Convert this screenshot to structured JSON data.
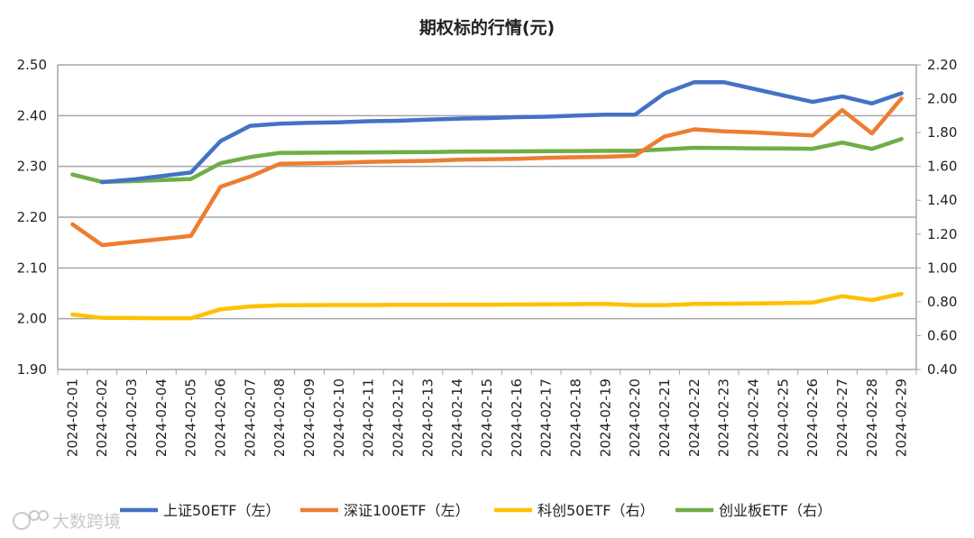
{
  "chart_data": {
    "type": "line",
    "title": "期权标的行情(元)",
    "categories": [
      "2024-02-01",
      "2024-02-02",
      "2024-02-03",
      "2024-02-04",
      "2024-02-05",
      "2024-02-06",
      "2024-02-07",
      "2024-02-08",
      "2024-02-09",
      "2024-02-10",
      "2024-02-11",
      "2024-02-12",
      "2024-02-13",
      "2024-02-14",
      "2024-02-15",
      "2024-02-16",
      "2024-02-17",
      "2024-02-18",
      "2024-02-19",
      "2024-02-20",
      "2024-02-21",
      "2024-02-22",
      "2024-02-23",
      "2024-02-24",
      "2024-02-25",
      "2024-02-26",
      "2024-02-27",
      "2024-02-28",
      "2024-02-29"
    ],
    "left_axis": {
      "ylim": [
        1.9,
        2.5
      ],
      "ticks": [
        "1.90",
        "2.00",
        "2.10",
        "2.20",
        "2.30",
        "2.40",
        "2.50"
      ]
    },
    "right_axis": {
      "ylim": [
        0.4,
        2.2
      ],
      "ticks": [
        "0.40",
        "0.60",
        "0.80",
        "1.00",
        "1.20",
        "1.40",
        "1.60",
        "1.80",
        "2.00",
        "2.20"
      ]
    },
    "grid": true,
    "legend_position": "bottom",
    "series": [
      {
        "name": "上证50ETF（左）",
        "axis": "left",
        "color": "#4472C4",
        "values": [
          null,
          2.269,
          2.274,
          2.281,
          2.288,
          2.35,
          2.38,
          2.384,
          2.386,
          2.387,
          2.389,
          2.39,
          2.392,
          2.394,
          2.395,
          2.397,
          2.398,
          2.4,
          2.402,
          2.402,
          2.444,
          2.466,
          2.466,
          2.453,
          2.44,
          2.427,
          2.438,
          2.424,
          2.444
        ]
      },
      {
        "name": "深证100ETF（左）",
        "axis": "left",
        "color": "#ED7D31",
        "values": [
          2.186,
          2.145,
          2.151,
          2.157,
          2.163,
          2.26,
          2.28,
          2.305,
          2.306,
          2.307,
          2.309,
          2.31,
          2.311,
          2.313,
          2.314,
          2.315,
          2.317,
          2.318,
          2.319,
          2.321,
          2.359,
          2.373,
          2.369,
          2.367,
          2.364,
          2.361,
          2.411,
          2.365,
          2.434
        ]
      },
      {
        "name": "科创50ETF（右）",
        "axis": "right",
        "color": "#FFC000",
        "values": [
          0.725,
          0.705,
          0.704,
          0.703,
          0.703,
          0.756,
          0.772,
          0.779,
          0.78,
          0.781,
          0.781,
          0.782,
          0.782,
          0.783,
          0.783,
          0.784,
          0.785,
          0.786,
          0.787,
          0.78,
          0.78,
          0.787,
          0.788,
          0.79,
          0.792,
          0.795,
          0.833,
          0.81,
          0.847
        ]
      },
      {
        "name": "创业板ETF（右）",
        "axis": "right",
        "color": "#70AD47",
        "values": [
          1.552,
          1.509,
          1.513,
          1.519,
          1.526,
          1.619,
          1.655,
          1.68,
          1.681,
          1.682,
          1.683,
          1.684,
          1.685,
          1.687,
          1.688,
          1.689,
          1.69,
          1.691,
          1.692,
          1.692,
          1.701,
          1.71,
          1.709,
          1.707,
          1.706,
          1.704,
          1.741,
          1.703,
          1.762
        ]
      }
    ]
  },
  "watermark": {
    "text": "大数跨境"
  }
}
